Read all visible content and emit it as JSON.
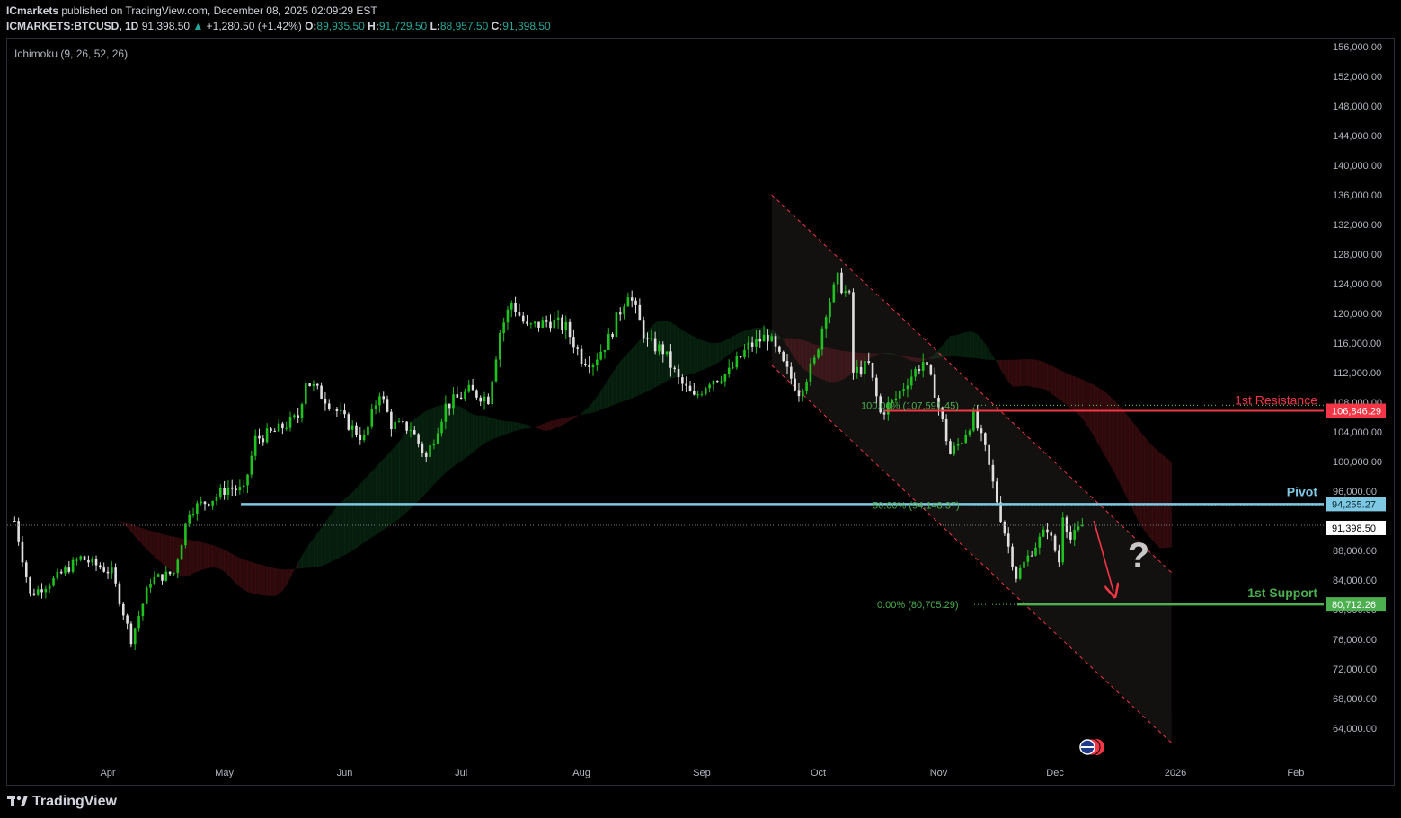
{
  "header": {
    "publisher": "ICmarkets",
    "published_text": "published on TradingView.com, December 08, 2025 02:09:29 EST",
    "symbol": "ICMARKETS:BTCUSD, 1D",
    "last_price": "91,398.50",
    "change": "+1,280.50 (+1.42%)",
    "open_label": "O:",
    "open": "89,935.50",
    "high_label": "H:",
    "high": "91,729.50",
    "low_label": "L:",
    "low": "88,957.50",
    "close_label": "C:",
    "close": "91,398.50"
  },
  "indicator": {
    "label": "Ichimoku (9, 26, 52, 26)"
  },
  "colors": {
    "up": "#26a69a",
    "candle_up": "#1fc21f",
    "candle_down": "#e0e0e0",
    "resistance": "#f23645",
    "support": "#4caf50",
    "pivot": "#7ec8e3",
    "fib": "#4caf50",
    "channel": "#f23645"
  },
  "price_axis": {
    "ticks": [
      "156,000.00",
      "152,000.00",
      "148,000.00",
      "144,000.00",
      "140,000.00",
      "136,000.00",
      "132,000.00",
      "128,000.00",
      "124,000.00",
      "120,000.00",
      "116,000.00",
      "112,000.00",
      "108,000.00",
      "104,000.00",
      "100,000.00",
      "96,000.00",
      "88,000.00",
      "84,000.00",
      "80,000.00",
      "76,000.00",
      "72,000.00",
      "68,000.00",
      "64,000.00"
    ],
    "tick_values": [
      156000,
      152000,
      148000,
      144000,
      140000,
      136000,
      132000,
      128000,
      124000,
      120000,
      116000,
      112000,
      108000,
      104000,
      100000,
      96000,
      88000,
      84000,
      80000,
      76000,
      72000,
      68000,
      64000
    ]
  },
  "time_axis": {
    "labels": [
      {
        "text": "Apr",
        "date": "2025-04-01"
      },
      {
        "text": "May",
        "date": "2025-05-01"
      },
      {
        "text": "Jun",
        "date": "2025-06-01"
      },
      {
        "text": "Jul",
        "date": "2025-07-01"
      },
      {
        "text": "Aug",
        "date": "2025-08-01"
      },
      {
        "text": "Sep",
        "date": "2025-09-01"
      },
      {
        "text": "Oct",
        "date": "2025-10-01"
      },
      {
        "text": "Nov",
        "date": "2025-11-01"
      },
      {
        "text": "Dec",
        "date": "2025-12-01"
      },
      {
        "text": "2026",
        "date": "2026-01-01"
      },
      {
        "text": "Feb",
        "date": "2026-02-01"
      }
    ]
  },
  "levels": {
    "resistance": {
      "label": "1st Resistance",
      "price": 106846.29,
      "price_text": "106,846.29"
    },
    "pivot": {
      "label": "Pivot",
      "price": 94255.27,
      "price_text": "94,255.27"
    },
    "support": {
      "label": "1st Support",
      "price": 80712.26,
      "price_text": "80,712.26"
    },
    "current": {
      "price": 91398.5,
      "price_text": "91,398.50"
    }
  },
  "fib": {
    "level_100": {
      "text": "100.00% (107,591.45)",
      "price": 107591.45
    },
    "level_50": {
      "text": "50.00% (94,148.37)",
      "price": 94148.37
    },
    "level_0": {
      "text": "0.00% (80,705.29)",
      "price": 80705.29
    }
  },
  "annotations": {
    "question": "?"
  },
  "footer": {
    "brand": "TradingView"
  },
  "chart_data": {
    "type": "candlestick",
    "x_unit": "date",
    "y_unit": "USD",
    "ylim": [
      60000,
      158000
    ],
    "xlim": [
      "2025-03-08",
      "2026-02-14"
    ],
    "price_path": [
      [
        "2025-03-08",
        92000
      ],
      [
        "2025-03-12",
        82000
      ],
      [
        "2025-03-18",
        84000
      ],
      [
        "2025-03-25",
        87000
      ],
      [
        "2025-04-02",
        85000
      ],
      [
        "2025-04-07",
        76000
      ],
      [
        "2025-04-12",
        84000
      ],
      [
        "2025-04-18",
        85000
      ],
      [
        "2025-04-22",
        93500
      ],
      [
        "2025-04-28",
        95000
      ],
      [
        "2025-05-02",
        96500
      ],
      [
        "2025-05-06",
        96000
      ],
      [
        "2025-05-09",
        103000
      ],
      [
        "2025-05-14",
        104000
      ],
      [
        "2025-05-20",
        106000
      ],
      [
        "2025-05-22",
        111000
      ],
      [
        "2025-05-28",
        108000
      ],
      [
        "2025-06-02",
        105000
      ],
      [
        "2025-06-06",
        103000
      ],
      [
        "2025-06-10",
        109500
      ],
      [
        "2025-06-13",
        105000
      ],
      [
        "2025-06-18",
        104500
      ],
      [
        "2025-06-22",
        100500
      ],
      [
        "2025-06-27",
        107500
      ],
      [
        "2025-07-03",
        109500
      ],
      [
        "2025-07-08",
        108500
      ],
      [
        "2025-07-11",
        117500
      ],
      [
        "2025-07-14",
        121500
      ],
      [
        "2025-07-18",
        118000
      ],
      [
        "2025-07-24",
        119000
      ],
      [
        "2025-07-28",
        118000
      ],
      [
        "2025-08-01",
        114000
      ],
      [
        "2025-08-04",
        113500
      ],
      [
        "2025-08-08",
        116500
      ],
      [
        "2025-08-13",
        123000
      ],
      [
        "2025-08-18",
        116000
      ],
      [
        "2025-08-22",
        115000
      ],
      [
        "2025-08-26",
        111000
      ],
      [
        "2025-08-30",
        108500
      ],
      [
        "2025-09-03",
        111000
      ],
      [
        "2025-09-08",
        112000
      ],
      [
        "2025-09-13",
        115500
      ],
      [
        "2025-09-18",
        117000
      ],
      [
        "2025-09-22",
        113000
      ],
      [
        "2025-09-26",
        109500
      ],
      [
        "2025-09-30",
        113500
      ],
      [
        "2025-10-03",
        120500
      ],
      [
        "2025-10-06",
        124500
      ],
      [
        "2025-10-09",
        122000
      ],
      [
        "2025-10-10",
        112000
      ],
      [
        "2025-10-14",
        113000
      ],
      [
        "2025-10-17",
        106500
      ],
      [
        "2025-10-21",
        108500
      ],
      [
        "2025-10-24",
        111000
      ],
      [
        "2025-10-28",
        113500
      ],
      [
        "2025-10-31",
        109500
      ],
      [
        "2025-11-04",
        101000
      ],
      [
        "2025-11-07",
        103000
      ],
      [
        "2025-11-10",
        106000
      ],
      [
        "2025-11-13",
        101500
      ],
      [
        "2025-11-17",
        92500
      ],
      [
        "2025-11-21",
        84500
      ],
      [
        "2025-11-25",
        88000
      ],
      [
        "2025-11-29",
        91000
      ],
      [
        "2025-12-02",
        86500
      ],
      [
        "2025-12-03",
        93000
      ],
      [
        "2025-12-05",
        89500
      ],
      [
        "2025-12-08",
        91398.5
      ]
    ],
    "channel": {
      "upper": [
        [
          "2025-09-19",
          136000
        ],
        [
          "2025-12-31",
          85000
        ]
      ],
      "lower": [
        [
          "2025-09-19",
          113000
        ],
        [
          "2025-12-31",
          62000
        ]
      ]
    },
    "projection_arrow": [
      [
        "2025-12-11",
        92000
      ],
      [
        "2025-12-16",
        82500
      ]
    ]
  }
}
